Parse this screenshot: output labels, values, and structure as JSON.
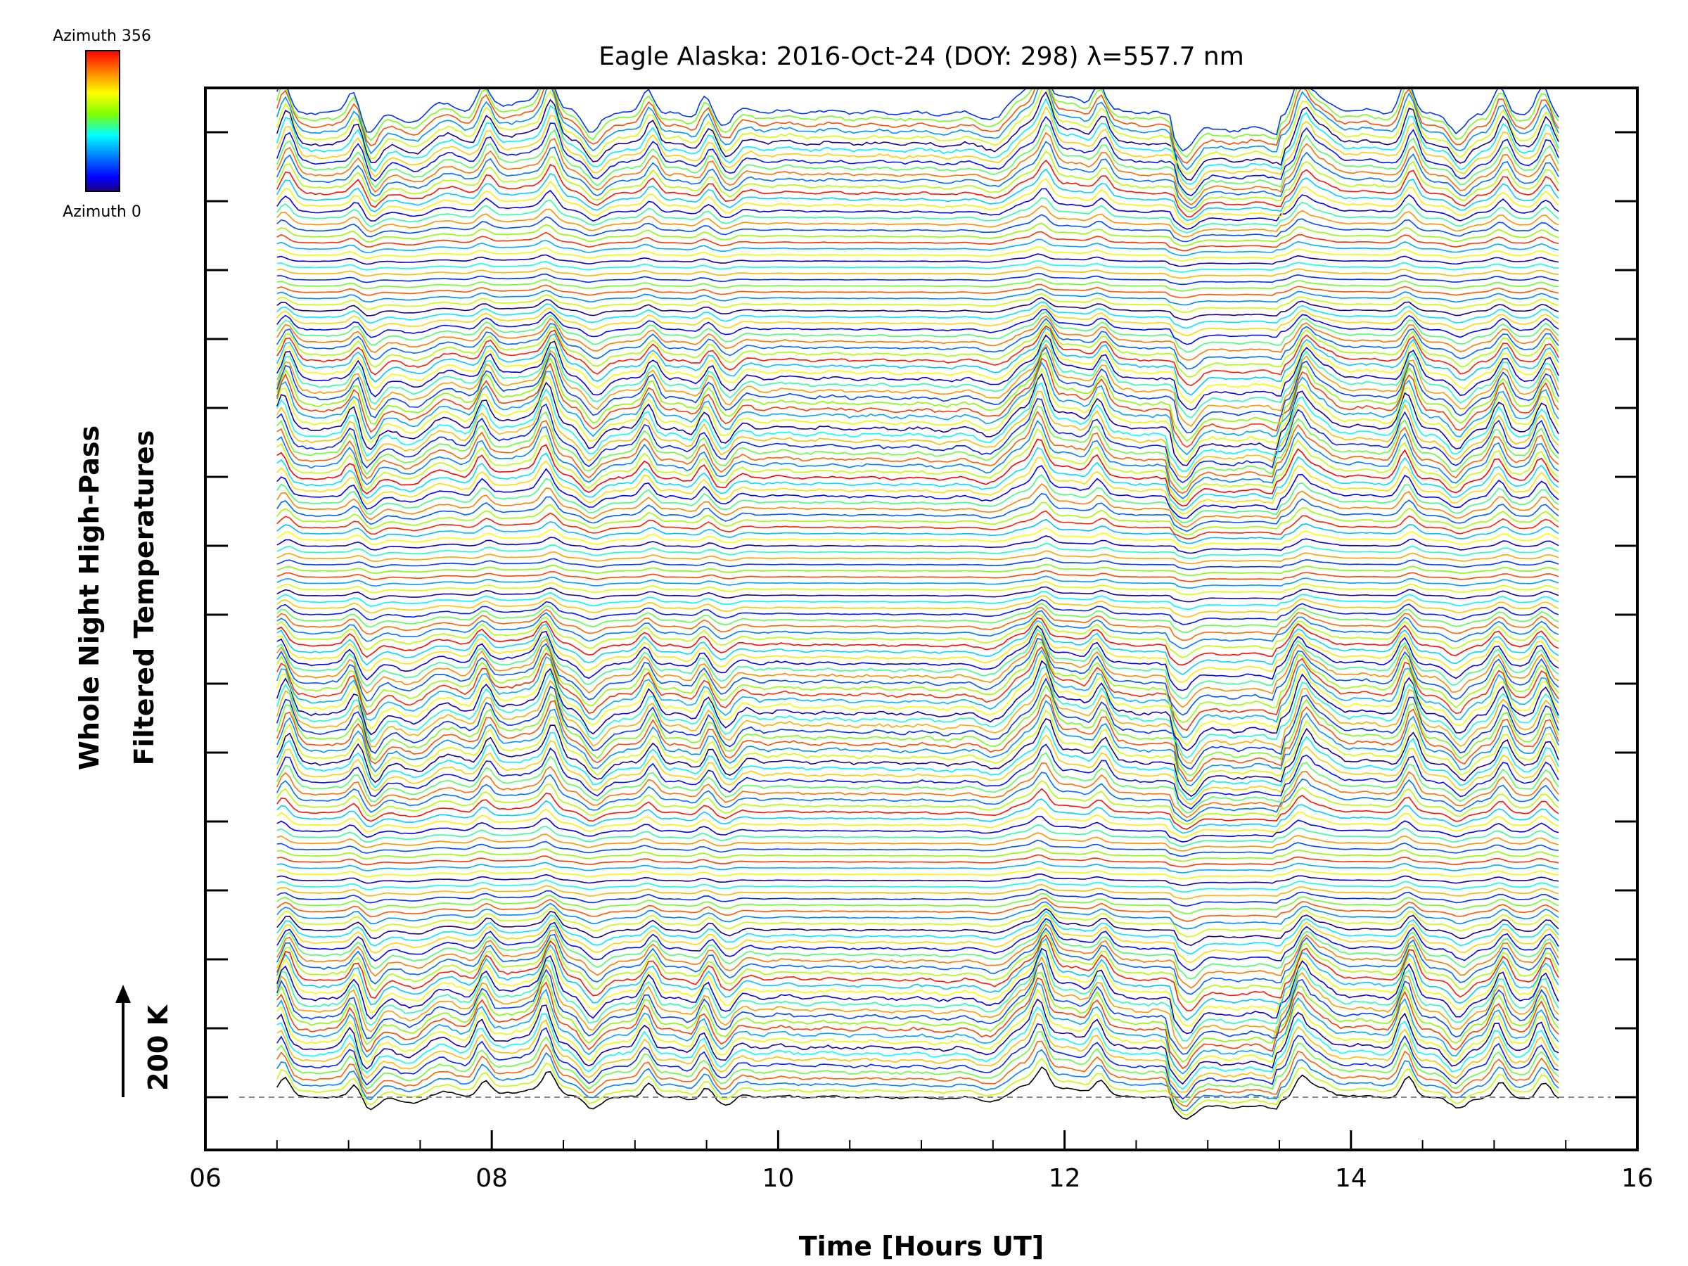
{
  "chart_data": {
    "type": "line",
    "title": "Eagle Alaska: 2016-Oct-24 (DOY: 298) λ=557.7 nm",
    "xlabel": "Time [Hours UT]",
    "ylabel_lines": [
      "Whole Night High-Pass",
      "Filtered Temperatures"
    ],
    "scale_label": "200 K",
    "xlim": [
      6,
      16
    ],
    "x_ticks": [
      "06",
      "08",
      "10",
      "12",
      "14",
      "16"
    ],
    "colorbar": {
      "top_label": "Azimuth 356",
      "bottom_label": "Azimuth 0",
      "colors": [
        "#ff0000",
        "#ff8000",
        "#ffff00",
        "#80ff00",
        "#00ffff",
        "#0080ff",
        "#0000ff",
        "#200080"
      ]
    },
    "x_start": 6.5,
    "x_end": 15.45,
    "num_traces": 160,
    "azimuth_range": [
      0,
      356
    ],
    "peak_times_hours": [
      6.55,
      7.05,
      7.95,
      8.4,
      9.1,
      9.5,
      11.85,
      12.25,
      13.65,
      14.4,
      15.05,
      15.35
    ],
    "dip_times_hours": [
      7.15,
      8.7,
      9.65,
      12.85,
      14.75
    ],
    "baseline_style": "dashed grey"
  }
}
